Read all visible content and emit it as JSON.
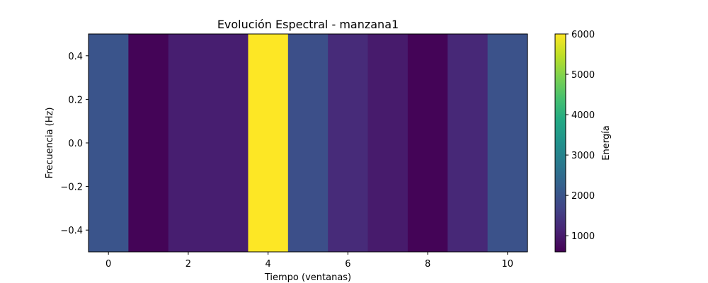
{
  "chart_data": {
    "type": "heatmap",
    "title": "Evolución Espectral - manzana1",
    "xlabel": "Tiempo (ventanas)",
    "ylabel": "Frecuencia (Hz)",
    "x": [
      0,
      1,
      2,
      3,
      4,
      5,
      6,
      7,
      8,
      9,
      10
    ],
    "y_range": [
      -0.5,
      0.5
    ],
    "values": [
      2000,
      650,
      1050,
      1050,
      6000,
      1900,
      1250,
      1000,
      650,
      1200,
      1950
    ],
    "xlim": [
      -0.5,
      10.5
    ],
    "ylim": [
      -0.5,
      0.5
    ],
    "x_ticks": [
      0,
      2,
      4,
      6,
      8,
      10
    ],
    "y_ticks": [
      0.4,
      0.2,
      0.0,
      -0.2,
      -0.4
    ],
    "y_tick_labels": [
      "0.4",
      "0.2",
      "0.0",
      "−0.2",
      "−0.4"
    ],
    "colormap": "viridis",
    "colorbar": {
      "label": "Energía",
      "min": 600,
      "max": 6000,
      "ticks": [
        1000,
        2000,
        3000,
        4000,
        5000,
        6000
      ]
    },
    "grid": false
  }
}
